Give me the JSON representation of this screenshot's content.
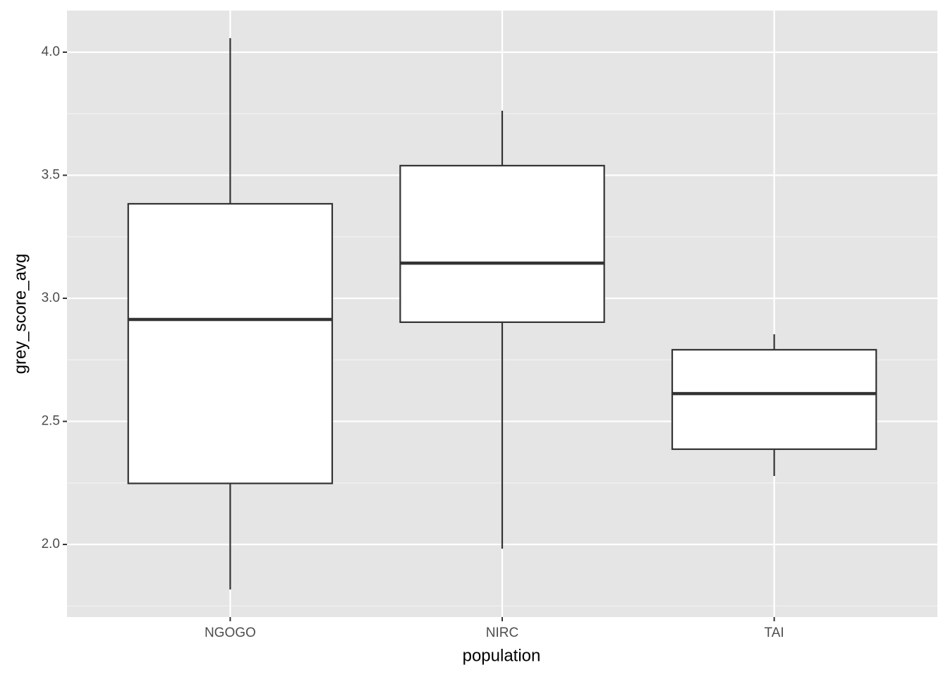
{
  "chart_data": {
    "type": "boxplot",
    "x_label": "population",
    "y_label": "grey_score_avg",
    "categories": [
      "NGOGO",
      "NIRC",
      "TAI"
    ],
    "min": [
      1.817,
      1.983,
      2.278
    ],
    "q1": [
      2.248,
      2.903,
      2.387
    ],
    "median": [
      2.914,
      3.143,
      2.613
    ],
    "q3": [
      3.384,
      3.539,
      2.791
    ],
    "max": [
      4.057,
      3.762,
      2.854
    ],
    "ylim": [
      1.705,
      4.169
    ],
    "yticks": [
      {
        "value": 2,
        "label": "2.0"
      },
      2.5,
      {
        "value": 3,
        "label": "3.0"
      },
      3.5,
      {
        "value": 4,
        "label": "4.0"
      }
    ],
    "minor_yticks": [
      1.75,
      2.25,
      2.75,
      3.25,
      3.75
    ],
    "grid": true,
    "color": "#ffffff",
    "line_color": "#333333",
    "panel_color": "#e5e5e5"
  }
}
